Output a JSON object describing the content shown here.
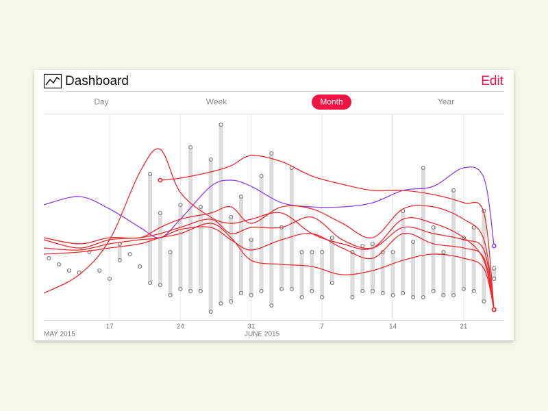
{
  "header": {
    "title": "Dashboard",
    "action": "Edit"
  },
  "tabs": {
    "items": [
      "Day",
      "Week",
      "Month",
      "Year"
    ],
    "selected": 2
  },
  "chart_data": {
    "type": "range-line",
    "annotations": [
      "MAY 2015",
      "JUNE 2015"
    ],
    "xlim": [
      10.5,
      56
    ],
    "xticks": [
      17,
      24,
      31,
      {
        "value": 38,
        "label": "7"
      },
      {
        "value": 45,
        "label": "14"
      },
      {
        "value": 52,
        "label": "21"
      }
    ],
    "ylim": [
      0,
      100
    ],
    "grid": true,
    "range_color": "#dcdcdc",
    "days": [
      11,
      12,
      13,
      14,
      15,
      16,
      17,
      18,
      19,
      20,
      21,
      22,
      23,
      24,
      25,
      26,
      27,
      28,
      29,
      30,
      31,
      32,
      33,
      34,
      35,
      36,
      37,
      38,
      39,
      40,
      41,
      42,
      43,
      44,
      45,
      46,
      47,
      48,
      49,
      50,
      51,
      52,
      53,
      54,
      55
    ],
    "high": [
      30,
      27,
      24,
      23,
      33,
      24,
      20,
      37,
      32,
      26,
      71,
      52,
      33,
      56,
      84,
      55,
      78,
      95,
      50,
      60,
      39,
      70,
      81,
      45,
      74,
      33,
      33,
      33,
      40,
      null,
      33,
      36,
      37,
      33,
      33,
      53,
      38,
      74,
      45,
      33,
      63,
      40,
      45,
      53,
      25
    ],
    "low": [
      30,
      27,
      24,
      23,
      33,
      24,
      20,
      29,
      32,
      26,
      18,
      17,
      12,
      15,
      14,
      14,
      4,
      8,
      9,
      13,
      12,
      14,
      7,
      15,
      15,
      11,
      14,
      11,
      18,
      null,
      11,
      14,
      14,
      13,
      12,
      13,
      11,
      11,
      14,
      12,
      12,
      15,
      14,
      9,
      20
    ],
    "line_x": [
      10.5,
      14,
      17,
      20,
      22,
      24,
      27,
      29,
      31,
      34,
      37,
      40,
      43,
      46,
      49,
      52,
      54,
      55
    ],
    "series": [
      {
        "color": "#8a3ff0",
        "values": [
          56,
          60,
          54,
          45,
          40,
          49,
          65,
          68,
          65,
          57,
          55,
          55,
          57,
          63,
          65,
          74,
          69,
          36
        ]
      },
      {
        "color": "#f0262a",
        "values": [
          13,
          22,
          39,
          72,
          83,
          62,
          50,
          47,
          49,
          52,
          42,
          37,
          35,
          49,
          47,
          40,
          29,
          5
        ]
      },
      {
        "color": "#f0262a",
        "values": [
          null,
          null,
          null,
          null,
          68,
          69,
          72,
          75,
          80,
          77,
          70,
          66,
          63,
          63,
          61,
          57,
          52,
          5
        ]
      },
      {
        "color": "#f0262a",
        "values": [
          40,
          37,
          40,
          40,
          45,
          49,
          52,
          55,
          47,
          55,
          54,
          47,
          40,
          54,
          55,
          49,
          39,
          5
        ]
      },
      {
        "color": "#f0262a",
        "values": [
          39,
          35,
          39,
          40,
          42,
          45,
          49,
          42,
          45,
          45,
          50,
          39,
          35,
          45,
          42,
          39,
          34,
          5
        ]
      },
      {
        "color": "#f0262a",
        "values": [
          35,
          34,
          37,
          39,
          40,
          44,
          45,
          39,
          34,
          39,
          42,
          35,
          30,
          42,
          37,
          35,
          30,
          5
        ]
      },
      {
        "color": "#f0262a",
        "values": [
          32,
          33,
          35,
          37,
          40,
          42,
          47,
          40,
          29,
          27,
          26,
          22,
          24,
          29,
          32,
          30,
          25,
          5
        ]
      }
    ]
  }
}
